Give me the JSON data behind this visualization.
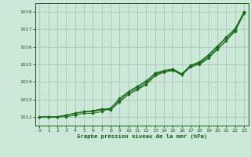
{
  "xlabel": "Graphe pression niveau de la mer (hPa)",
  "background_color": "#cce8d8",
  "grid_color": "#aaccbb",
  "text_color": "#1a5c1a",
  "line_color": "#1a6b1a",
  "hours": [
    0,
    1,
    2,
    3,
    4,
    5,
    6,
    7,
    8,
    9,
    10,
    11,
    12,
    13,
    14,
    15,
    16,
    17,
    18,
    19,
    20,
    21,
    22,
    23
  ],
  "series": [
    [
      1012.0,
      1012.0,
      1012.0,
      1012.0,
      1012.1,
      1012.2,
      1012.2,
      1012.3,
      1012.5,
      1013.0,
      1013.4,
      1013.7,
      1014.0,
      1014.5,
      1014.6,
      1014.7,
      1014.4,
      1014.9,
      1015.1,
      1015.5,
      1016.0,
      1016.5,
      1017.0,
      1018.0
    ],
    [
      1012.0,
      1012.0,
      1012.0,
      1012.1,
      1012.2,
      1012.3,
      1012.3,
      1012.4,
      1012.5,
      1013.05,
      1013.45,
      1013.75,
      1014.05,
      1014.5,
      1014.65,
      1014.75,
      1014.45,
      1014.95,
      1015.15,
      1015.55,
      1016.05,
      1016.55,
      1017.05,
      1018.0
    ],
    [
      1012.0,
      1012.0,
      1012.0,
      1012.1,
      1012.2,
      1012.3,
      1012.35,
      1012.45,
      1012.4,
      1012.9,
      1013.3,
      1013.6,
      1013.9,
      1014.4,
      1014.6,
      1014.7,
      1014.45,
      1014.95,
      1015.05,
      1015.4,
      1015.9,
      1016.35,
      1016.95,
      1017.95
    ],
    [
      1012.0,
      1012.0,
      1012.0,
      1012.1,
      1012.2,
      1012.3,
      1012.35,
      1012.45,
      1012.4,
      1012.85,
      1013.3,
      1013.55,
      1013.85,
      1014.35,
      1014.55,
      1014.65,
      1014.4,
      1014.85,
      1015.0,
      1015.35,
      1015.85,
      1016.35,
      1016.9,
      1017.9
    ]
  ],
  "ylim": [
    1011.5,
    1018.5
  ],
  "yticks": [
    1012,
    1013,
    1014,
    1015,
    1016,
    1017,
    1018
  ],
  "xlim": [
    -0.5,
    23.5
  ],
  "xticks": [
    0,
    1,
    2,
    3,
    4,
    5,
    6,
    7,
    8,
    9,
    10,
    11,
    12,
    13,
    14,
    15,
    16,
    17,
    18,
    19,
    20,
    21,
    22,
    23
  ]
}
